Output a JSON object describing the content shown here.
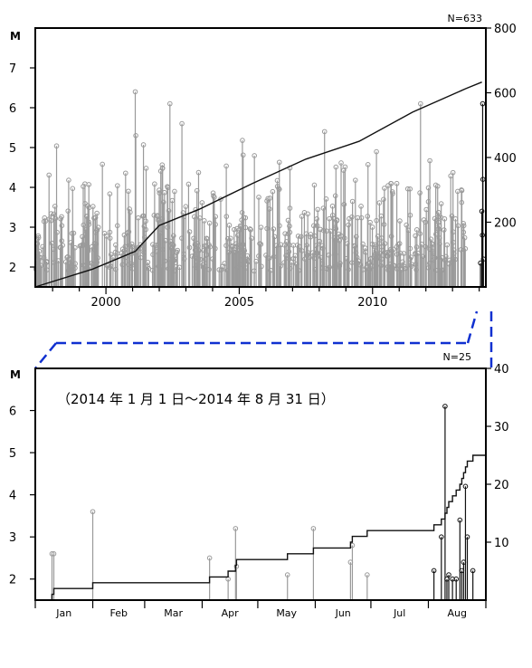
{
  "colors": {
    "stem_gray": "#9a9a9a",
    "stem_black": "#111111",
    "cumulative": "#111111",
    "connector": "#1030d0",
    "frame": "#000000"
  },
  "chart_data": [
    {
      "type": "scatter",
      "description_role": "upper",
      "y_axis_label": "M",
      "count_label": "N=633",
      "x_range": [
        1997.85,
        2014.75
      ],
      "y_range": [
        1.5,
        8.0
      ],
      "right_y_range": [
        0,
        800
      ],
      "x_ticks": [
        "2000",
        "2005",
        "2010"
      ],
      "y_ticks": [
        "2",
        "3",
        "4",
        "5",
        "6",
        "7"
      ],
      "right_y_ticks": [
        "200",
        "400",
        "600",
        "800"
      ],
      "highlighted_period": [
        2014.0,
        2014.67
      ],
      "notable_events": [
        {
          "t": 2001.6,
          "m": 6.4
        },
        {
          "t": 2001.62,
          "m": 5.3
        },
        {
          "t": 2002.9,
          "m": 6.1
        },
        {
          "t": 2003.35,
          "m": 5.6
        },
        {
          "t": 2008.7,
          "m": 5.4
        },
        {
          "t": 2012.3,
          "m": 6.1
        },
        {
          "t": 2014.63,
          "m": 6.1
        }
      ],
      "cumulative": [
        [
          1997.85,
          0
        ],
        [
          2000,
          55
        ],
        [
          2001.6,
          110
        ],
        [
          2002.5,
          190
        ],
        [
          2004,
          240
        ],
        [
          2006,
          320
        ],
        [
          2008,
          395
        ],
        [
          2010,
          450
        ],
        [
          2012,
          540
        ],
        [
          2014,
          613
        ],
        [
          2014.6,
          633
        ]
      ]
    },
    {
      "type": "scatter",
      "description_role": "lower",
      "y_axis_label": "M",
      "count_label": "N=25",
      "caption": "（2014 年 1 月 1 日～2014 年 8 月 31 日）",
      "x_range": [
        0,
        243
      ],
      "y_range": [
        1.5,
        7.0
      ],
      "right_y_range": [
        0,
        40
      ],
      "months": [
        "Jan",
        "Feb",
        "Mar",
        "Apr",
        "May",
        "Jun",
        "Jul",
        "Aug"
      ],
      "y_ticks": [
        "2",
        "3",
        "4",
        "5",
        "6"
      ],
      "right_y_ticks": [
        "10",
        "20",
        "30",
        "40"
      ],
      "events": [
        {
          "day": 9,
          "m": 2.6
        },
        {
          "day": 10,
          "m": 2.6
        },
        {
          "day": 31,
          "m": 3.6
        },
        {
          "day": 94,
          "m": 2.5
        },
        {
          "day": 104,
          "m": 2.0
        },
        {
          "day": 108,
          "m": 3.2
        },
        {
          "day": 108.5,
          "m": 2.3
        },
        {
          "day": 136,
          "m": 2.1
        },
        {
          "day": 150,
          "m": 3.2
        },
        {
          "day": 170,
          "m": 2.4
        },
        {
          "day": 171,
          "m": 2.8
        },
        {
          "day": 179,
          "m": 2.1
        },
        {
          "day": 215,
          "m": 2.2
        },
        {
          "day": 219,
          "m": 3.0
        },
        {
          "day": 221,
          "m": 6.1
        },
        {
          "day": 222,
          "m": 2.0
        },
        {
          "day": 223,
          "m": 2.1
        },
        {
          "day": 225,
          "m": 2.0
        },
        {
          "day": 227,
          "m": 2.0
        },
        {
          "day": 229,
          "m": 3.4
        },
        {
          "day": 230,
          "m": 2.2
        },
        {
          "day": 231,
          "m": 2.4
        },
        {
          "day": 232,
          "m": 4.2
        },
        {
          "day": 233,
          "m": 3.0
        },
        {
          "day": 236,
          "m": 2.2
        }
      ]
    }
  ]
}
